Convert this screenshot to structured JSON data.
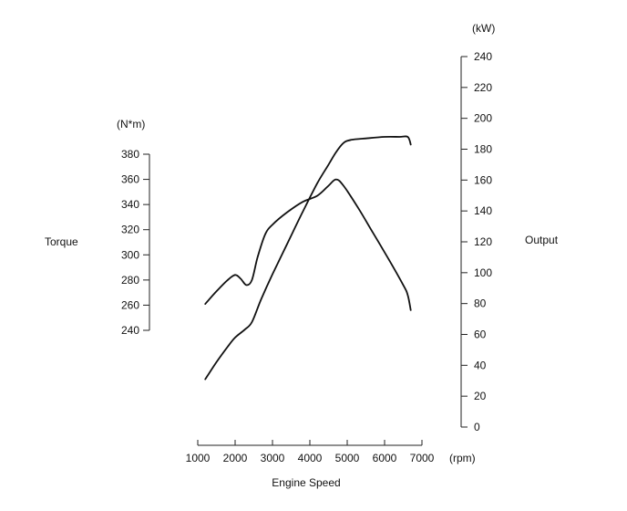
{
  "chart_data": {
    "type": "line",
    "xlabel": "Engine Speed",
    "xunit": "(rpm)",
    "xlim": [
      1000,
      7000
    ],
    "xticks": [
      1000,
      2000,
      3000,
      4000,
      5000,
      6000,
      7000
    ],
    "left_axis": {
      "label": "Torque",
      "unit": "(N*m)",
      "ylim": [
        240,
        380
      ],
      "ticks": [
        240,
        260,
        280,
        300,
        320,
        340,
        360,
        380
      ]
    },
    "right_axis": {
      "label": "Output",
      "unit": "(kW)",
      "ylim": [
        0,
        240
      ],
      "ticks": [
        0,
        20,
        40,
        60,
        80,
        100,
        120,
        140,
        160,
        180,
        200,
        220,
        240
      ]
    },
    "grid": false,
    "series": [
      {
        "axis": "left",
        "x": [
          1200,
          1500,
          1800,
          2000,
          2150,
          2300,
          2450,
          2600,
          2800,
          3000,
          3400,
          3800,
          4200,
          4500,
          4700,
          4900,
          5300,
          5700,
          6100,
          6500,
          6620,
          6700
        ],
        "y": [
          261,
          271,
          280,
          284,
          281,
          276,
          280,
          298,
          316,
          324,
          334,
          342,
          347,
          355,
          360,
          355,
          337,
          317,
          297,
          276,
          268,
          256
        ]
      },
      {
        "axis": "right",
        "x": [
          1200,
          1500,
          1800,
          2000,
          2250,
          2450,
          2700,
          3000,
          3400,
          3800,
          4200,
          4500,
          4700,
          4900,
          5100,
          5500,
          6000,
          6400,
          6620,
          6700
        ],
        "y": [
          31,
          42,
          52,
          58,
          63,
          68,
          83,
          99,
          119,
          139,
          158,
          170,
          178,
          184,
          186,
          187,
          188,
          188,
          188,
          183
        ]
      }
    ]
  }
}
